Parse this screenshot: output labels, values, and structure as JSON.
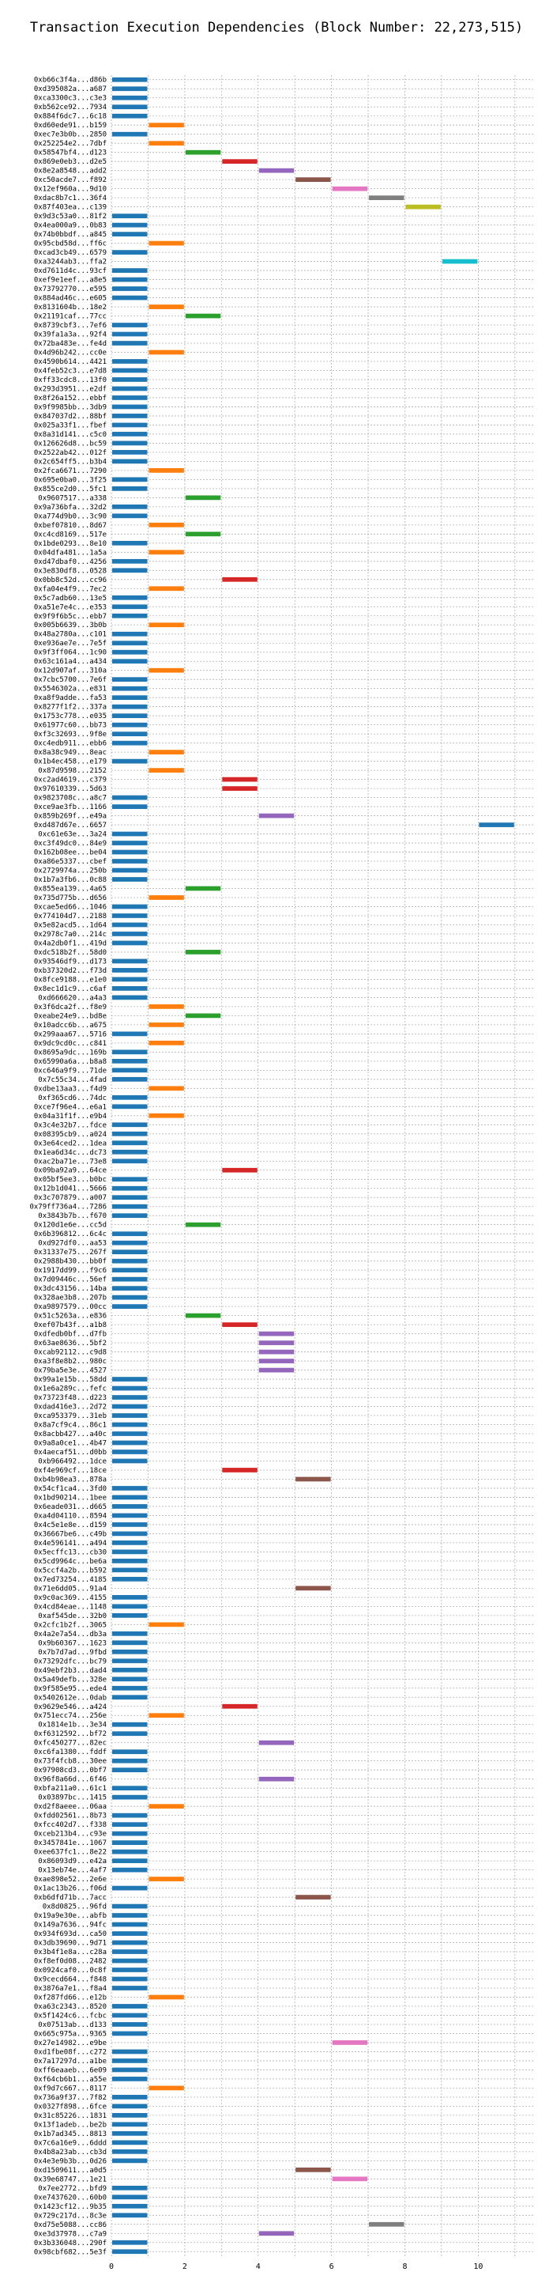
{
  "chart_data": {
    "type": "bar",
    "orientation": "horizontal",
    "title": "Transaction Execution Dependencies (Block Number: 22,273,515)",
    "xlabel": "",
    "ylabel": "",
    "xlim": [
      0,
      11.5
    ],
    "xticks": [
      0,
      2,
      4,
      6,
      8,
      10
    ],
    "grid": true,
    "level_colors": [
      "#1f77b4",
      "#ff7f0e",
      "#2ca02c",
      "#d62728",
      "#9467bd",
      "#8c564b",
      "#e377c2",
      "#7f7f7f",
      "#bcbd22",
      "#17becf"
    ],
    "categories": [
      "0xb66c3f4a...d86b",
      "0xd395082a...a687",
      "0xca3300c3...c3e3",
      "0xb562ce92...7934",
      "0x884f6dc7...6c18",
      "0xd60ede91...b159",
      "0xec7e3b0b...2850",
      "0x252254e2...7dbf",
      "0x58547bf4...d123",
      "0x869e0eb3...d2e5",
      "0x8e2a8548...add2",
      "0xc50acde7...f892",
      "0x12ef960a...9d10",
      "0xdac8b7c1...36f4",
      "0x87f403ea...c139",
      "0x9d3c53a0...81f2",
      "0x4ea000a9...0b83",
      "0x74b0bbdf...a845",
      "0x95cbd58d...ff6c",
      "0xcad3cb49...6579",
      "0xa3244ab3...ffa2",
      "0xd7611d4c...93cf",
      "0xef9e1eef...a8e5",
      "0x73792770...e595",
      "0x884ad46c...e605",
      "0x8131604b...18e2",
      "0x21191caf...77cc",
      "0x8739cbf3...7ef6",
      "0x39fa1a3a...92f4",
      "0x72ba483e...fe4d",
      "0x4d96b242...cc0e",
      "0x4590b614...4421",
      "0x4feb52c3...e7d8",
      "0xff33cdc8...13f0",
      "0x293d3951...e2df",
      "0x8f26a152...ebbf",
      "0x9f9985bb...3db9",
      "0x847037d2...88bf",
      "0x025a33f1...fbef",
      "0x8a31d141...c5c0",
      "0x126626d8...bc59",
      "0x2522ab42...012f",
      "0x2c654ff5...b3b4",
      "0x2fca6671...7290",
      "0x695e0ba0...3f25",
      "0x855ce2d0...5fc1",
      "0x9607517...a338",
      "0x9a736bfa...32d2",
      "0xa774d9b0...3c90",
      "0xbef07810...8d67",
      "0xc4cd8169...517e",
      "0x1bde0293...8e10",
      "0x04dfa481...1a5a",
      "0xd47dbaf0...4256",
      "0x3e830df8...0528",
      "0x0bb8c52d...cc96",
      "0xfa04e4f9...7ec2",
      "0x5c7adb60...13e5",
      "0xa51e7e4c...e353",
      "0x9f9f6b5c...ebb7",
      "0x005b6639...3b0b",
      "0x48a2780a...c101",
      "0xe936ae7e...7e5f",
      "0x9f3ff064...1c90",
      "0x63c161a4...a434",
      "0x12d907af...310a",
      "0x7cbc5700...7e6f",
      "0x5546302a...e831",
      "0xa8f9adde...fa53",
      "0x8277f1f2...337a",
      "0x1753c778...e035",
      "0x61977c60...bb73",
      "0xf3c32693...9f8e",
      "0xc4edb911...ebb6",
      "0x8a38c949...8eac",
      "0x1b4ec458...e179",
      "0x87d9598...2152",
      "0xc2ad4619...c379",
      "0x97610339...5d63",
      "0x9823708c...a8c7",
      "0xce9ae3fb...1166",
      "0x859b269f...e49a",
      "0xd487d67e...6657",
      "0xc61e63e...3a24",
      "0xc3f49dc0...84e9",
      "0x162b08ee...be04",
      "0xa86e5337...cbef",
      "0x2729974a...250b",
      "0x1b7a3fb6...0c88",
      "0x855ea139...4a65",
      "0x735d775b...d656",
      "0xcae5ed66...1046",
      "0x774104d7...2188",
      "0x5e82acd5...1d64",
      "0x2978c7a0...214c",
      "0x4a2db0f1...419d",
      "0xdc518b2f...58d0",
      "0x93546df9...d173",
      "0xb37320d2...f73d",
      "0x8fce9188...e1e0",
      "0x8ec1d1c9...c6af",
      "0xd666620...a4a3",
      "0x3f6dca2f...f8e9",
      "0xeabe24e9...bd8e",
      "0x10adcc6b...a675",
      "0x299aaa67...5716",
      "0x9dc9cd0c...c841",
      "0x8695a9dc...169b",
      "0x65990a6a...b8a8",
      "0xc646a9f9...71de",
      "0x7c55c34...4fad",
      "0xdbe13aa3...f4d9",
      "0xf365cd6...74dc",
      "0xce7f96e4...e6a1",
      "0x04a31f1f...e9b4",
      "0x3c4e32b7...fdce",
      "0x08395cb9...a024",
      "0x3e64ced2...1dea",
      "0x1ea6d34c...dc73",
      "0xac2ba71e...73e8",
      "0x09ba92a9...64ce",
      "0x05bf5ee3...b0bc",
      "0x12b1d041...5666",
      "0x3c707879...a007",
      "0x79ff736a4...7286",
      "0x3843b7b...f670",
      "0x120d1e6e...cc5d",
      "0x6b396812...6c4c",
      "0xd927df0...aa53",
      "0x31337e75...267f",
      "0x2988b430...bb0f",
      "0x1917dd99...f9c6",
      "0x7d09446c...56ef",
      "0x3dc43156...14ba",
      "0x328ae3b8...207b",
      "0xa9897579...00cc",
      "0x51c5263a...e836",
      "0xef07b43f...a1b8",
      "0xdfedb0bf...d7fb",
      "0x63ae8636...5bf2",
      "0xcab92112...c9d8",
      "0xa3f8e8b2...980c",
      "0x79ba5e3e...4527",
      "0x99a1e15b...58dd",
      "0x1e6a289c...fefc",
      "0x73723f48...d223",
      "0xdad416e3...2d72",
      "0xca953379...31eb",
      "0x8a7cf9c4...86c1",
      "0x8acbb427...a40c",
      "0x9a8a0ce1...4b47",
      "0x4aecaf51...d0bb",
      "0xb966492...1dce",
      "0xf4e969cf...18ce",
      "0xb4b98ea3...878a",
      "0x54cf1ca4...3fd0",
      "0x1bd90214...1bee",
      "0x6eade031...d665",
      "0xa4d04110...8594",
      "0x4c5e1e8e...d159",
      "0x36667be6...c49b",
      "0x4e596141...a494",
      "0x5ecffc13...cb30",
      "0x5cd9964c...be6a",
      "0x5ccf4a2b...b592",
      "0x7ed73254...4185",
      "0x71e6dd05...91a4",
      "0x9c0ac369...4155",
      "0x4cd84eae...1148",
      "0xaf545de...32b0",
      "0x2cfc1b2f...3065",
      "0x4a2e7a54...db3a",
      "0x9b60367...1623",
      "0x7b7d7ad...9fbd",
      "0x73292dfc...bc79",
      "0x49ebf2b3...dad4",
      "0x5a49defb...328e",
      "0x9f585e95...ede4",
      "0x5402612e...0dab",
      "0x9629e546...a424",
      "0x751ecc74...256e",
      "0x1814e1b...3e34",
      "0xf6312592...bf72",
      "0xfc450277...82ec",
      "0xc6fa1380...fddf",
      "0x73f4fcb8...30ee",
      "0x97908cd3...0bf7",
      "0x96f8a66d...6f46",
      "0xbfa211a0...61c1",
      "0x03897bc...1415",
      "0xd2f8aeee...06aa",
      "0xfdd02561...8b73",
      "0xfcc402d7...f338",
      "0xceb213b4...c93e",
      "0x3457841e...1067",
      "0xee637fc1...8e22",
      "0x86093d9...e42a",
      "0x13eb74e...4af7",
      "0xae898e52...2e6e",
      "0x1ac13b26...f06d",
      "0xb6dfd71b...7acc",
      "0x8d0825...96fd",
      "0x19a9e30e...abfb",
      "0x149a7636...94fc",
      "0x934f693d...ca50",
      "0x3db39690...9d71",
      "0x3b4f1e8a...c28a",
      "0xf8ef0d08...2482",
      "0x0924caf0...0c8f",
      "0x9cecd664...f848",
      "0x3876a7e1...f8a4",
      "0xf287fd66...e12b",
      "0xa63c2343...8520",
      "0x5f1424c6...fcbc",
      "0x07513ab...d133",
      "0x665c975a...9365",
      "0x27e14982...e9be",
      "0xd1fbe08f...c272",
      "0x7a17297d...a1be",
      "0xff6eaaeb...6e09",
      "0xf64cb6b1...a55e",
      "0xf9d7c667...8117",
      "0x736a9f37...7f82",
      "0x0327f898...6fce",
      "0x31c85226...1831",
      "0x13f1adeb...be2b",
      "0x1b7ad345...8813",
      "0x7c6a16e9...6ddd",
      "0x4b8a23ab...cb3d",
      "0x4e3e9b3b...0d26",
      "0xd1509611...a0d5",
      "0x39e68747...1e21",
      "0x7ee2772...bfd9",
      "0xe7437620...60b0",
      "0x1423cf12...9b35",
      "0x729c217d...8c3e",
      "0xd75e5088...cc86",
      "0xe3d37978...c7a9",
      "0x3b336048...290f",
      "0x98cbf682...5e3f"
    ],
    "intervals": [
      [
        0,
        1
      ],
      [
        0,
        1
      ],
      [
        0,
        1
      ],
      [
        0,
        1
      ],
      [
        0,
        1
      ],
      [
        1,
        2
      ],
      [
        0,
        1
      ],
      [
        1,
        2
      ],
      [
        2,
        3
      ],
      [
        3,
        4
      ],
      [
        4,
        5
      ],
      [
        5,
        6
      ],
      [
        6,
        7
      ],
      [
        7,
        8
      ],
      [
        8,
        9
      ],
      [
        0,
        1
      ],
      [
        0,
        1
      ],
      [
        0,
        1
      ],
      [
        1,
        2
      ],
      [
        0,
        1
      ],
      [
        9,
        10
      ],
      [
        0,
        1
      ],
      [
        0,
        1
      ],
      [
        0,
        1
      ],
      [
        0,
        1
      ],
      [
        1,
        2
      ],
      [
        2,
        3
      ],
      [
        0,
        1
      ],
      [
        0,
        1
      ],
      [
        0,
        1
      ],
      [
        1,
        2
      ],
      [
        0,
        1
      ],
      [
        0,
        1
      ],
      [
        0,
        1
      ],
      [
        0,
        1
      ],
      [
        0,
        1
      ],
      [
        0,
        1
      ],
      [
        0,
        1
      ],
      [
        0,
        1
      ],
      [
        0,
        1
      ],
      [
        0,
        1
      ],
      [
        0,
        1
      ],
      [
        0,
        1
      ],
      [
        1,
        2
      ],
      [
        0,
        1
      ],
      [
        0,
        1
      ],
      [
        2,
        3
      ],
      [
        0,
        1
      ],
      [
        0,
        1
      ],
      [
        1,
        2
      ],
      [
        2,
        3
      ],
      [
        0,
        1
      ],
      [
        1,
        2
      ],
      [
        0,
        1
      ],
      [
        0,
        1
      ],
      [
        3,
        4
      ],
      [
        1,
        2
      ],
      [
        0,
        1
      ],
      [
        0,
        1
      ],
      [
        0,
        1
      ],
      [
        1,
        2
      ],
      [
        0,
        1
      ],
      [
        0,
        1
      ],
      [
        0,
        1
      ],
      [
        0,
        1
      ],
      [
        1,
        2
      ],
      [
        0,
        1
      ],
      [
        0,
        1
      ],
      [
        0,
        1
      ],
      [
        0,
        1
      ],
      [
        0,
        1
      ],
      [
        0,
        1
      ],
      [
        0,
        1
      ],
      [
        0,
        1
      ],
      [
        1,
        2
      ],
      [
        0,
        1
      ],
      [
        1,
        2
      ],
      [
        3,
        4
      ],
      [
        3,
        4
      ],
      [
        0,
        1
      ],
      [
        0,
        1
      ],
      [
        4,
        5
      ],
      [
        10,
        11
      ],
      [
        0,
        1
      ],
      [
        0,
        1
      ],
      [
        0,
        1
      ],
      [
        0,
        1
      ],
      [
        0,
        1
      ],
      [
        0,
        1
      ],
      [
        2,
        3
      ],
      [
        1,
        2
      ],
      [
        0,
        1
      ],
      [
        0,
        1
      ],
      [
        0,
        1
      ],
      [
        0,
        1
      ],
      [
        0,
        1
      ],
      [
        2,
        3
      ],
      [
        0,
        1
      ],
      [
        0,
        1
      ],
      [
        0,
        1
      ],
      [
        0,
        1
      ],
      [
        0,
        1
      ],
      [
        1,
        2
      ],
      [
        2,
        3
      ],
      [
        1,
        2
      ],
      [
        0,
        1
      ],
      [
        1,
        2
      ],
      [
        0,
        1
      ],
      [
        0,
        1
      ],
      [
        0,
        1
      ],
      [
        0,
        1
      ],
      [
        1,
        2
      ],
      [
        0,
        1
      ],
      [
        0,
        1
      ],
      [
        1,
        2
      ],
      [
        0,
        1
      ],
      [
        0,
        1
      ],
      [
        0,
        1
      ],
      [
        0,
        1
      ],
      [
        0,
        1
      ],
      [
        3,
        4
      ],
      [
        0,
        1
      ],
      [
        0,
        1
      ],
      [
        0,
        1
      ],
      [
        0,
        1
      ],
      [
        0,
        1
      ],
      [
        2,
        3
      ],
      [
        0,
        1
      ],
      [
        0,
        1
      ],
      [
        0,
        1
      ],
      [
        0,
        1
      ],
      [
        0,
        1
      ],
      [
        0,
        1
      ],
      [
        0,
        1
      ],
      [
        0,
        1
      ],
      [
        0,
        1
      ],
      [
        2,
        3
      ],
      [
        3,
        4
      ],
      [
        4,
        5
      ],
      [
        4,
        5
      ],
      [
        4,
        5
      ],
      [
        4,
        5
      ],
      [
        4,
        5
      ],
      [
        0,
        1
      ],
      [
        0,
        1
      ],
      [
        0,
        1
      ],
      [
        0,
        1
      ],
      [
        0,
        1
      ],
      [
        0,
        1
      ],
      [
        0,
        1
      ],
      [
        0,
        1
      ],
      [
        0,
        1
      ],
      [
        0,
        1
      ],
      [
        3,
        4
      ],
      [
        5,
        6
      ],
      [
        0,
        1
      ],
      [
        0,
        1
      ],
      [
        0,
        1
      ],
      [
        0,
        1
      ],
      [
        0,
        1
      ],
      [
        0,
        1
      ],
      [
        0,
        1
      ],
      [
        0,
        1
      ],
      [
        0,
        1
      ],
      [
        0,
        1
      ],
      [
        0,
        1
      ],
      [
        5,
        6
      ],
      [
        0,
        1
      ],
      [
        0,
        1
      ],
      [
        0,
        1
      ],
      [
        1,
        2
      ],
      [
        0,
        1
      ],
      [
        0,
        1
      ],
      [
        0,
        1
      ],
      [
        0,
        1
      ],
      [
        0,
        1
      ],
      [
        0,
        1
      ],
      [
        0,
        1
      ],
      [
        0,
        1
      ],
      [
        3,
        4
      ],
      [
        1,
        2
      ],
      [
        0,
        1
      ],
      [
        0,
        1
      ],
      [
        4,
        5
      ],
      [
        0,
        1
      ],
      [
        0,
        1
      ],
      [
        0,
        1
      ],
      [
        4,
        5
      ],
      [
        0,
        1
      ],
      [
        0,
        1
      ],
      [
        1,
        2
      ],
      [
        0,
        1
      ],
      [
        0,
        1
      ],
      [
        0,
        1
      ],
      [
        0,
        1
      ],
      [
        0,
        1
      ],
      [
        0,
        1
      ],
      [
        0,
        1
      ],
      [
        1,
        2
      ],
      [
        0,
        1
      ],
      [
        5,
        6
      ],
      [
        0,
        1
      ],
      [
        0,
        1
      ],
      [
        0,
        1
      ],
      [
        0,
        1
      ],
      [
        0,
        1
      ],
      [
        0,
        1
      ],
      [
        0,
        1
      ],
      [
        0,
        1
      ],
      [
        0,
        1
      ],
      [
        0,
        1
      ],
      [
        1,
        2
      ],
      [
        0,
        1
      ],
      [
        0,
        1
      ],
      [
        0,
        1
      ],
      [
        0,
        1
      ],
      [
        6,
        7
      ],
      [
        0,
        1
      ],
      [
        0,
        1
      ],
      [
        0,
        1
      ],
      [
        0,
        1
      ],
      [
        1,
        2
      ],
      [
        0,
        1
      ],
      [
        0,
        1
      ],
      [
        0,
        1
      ],
      [
        0,
        1
      ],
      [
        0,
        1
      ],
      [
        0,
        1
      ],
      [
        0,
        1
      ],
      [
        0,
        1
      ],
      [
        5,
        6
      ],
      [
        6,
        7
      ],
      [
        0,
        1
      ],
      [
        0,
        1
      ],
      [
        0,
        1
      ],
      [
        0,
        1
      ],
      [
        7,
        8
      ],
      [
        4,
        5
      ],
      [
        0,
        1
      ],
      [
        0,
        1
      ]
    ]
  }
}
